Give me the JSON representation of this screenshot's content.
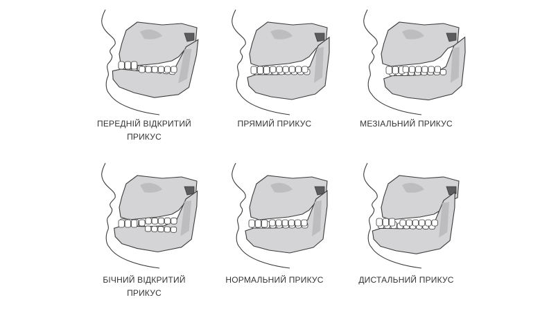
{
  "colors": {
    "bone": "#d4d4d6",
    "bone_shade": "#bdbdc0",
    "outline": "#3a3a3a",
    "teeth": "#ffffff",
    "text": "#333333"
  },
  "items": [
    {
      "id": "anterior-open-bite",
      "bite": "open-front",
      "line1": "ПЕРЕДНІЙ ВІДКРИТИЙ",
      "line2": "ПРИКУС"
    },
    {
      "id": "straight-bite",
      "bite": "edge",
      "line1": "ПРЯМИЙ ПРИКУС",
      "line2": ""
    },
    {
      "id": "mesial-bite",
      "bite": "mesial",
      "line1": "МЕЗІАЛЬНИЙ ПРИКУС",
      "line2": ""
    },
    {
      "id": "lateral-open-bite",
      "bite": "open-side",
      "line1": "БІЧНИЙ ВІДКРИТИЙ",
      "line2": "ПРИКУС"
    },
    {
      "id": "normal-bite",
      "bite": "normal",
      "line1": "НОРМАЛЬНИЙ ПРИКУС",
      "line2": ""
    },
    {
      "id": "distal-bite",
      "bite": "distal",
      "line1": "ДИСТАЛЬНИЙ ПРИКУС",
      "line2": ""
    }
  ]
}
